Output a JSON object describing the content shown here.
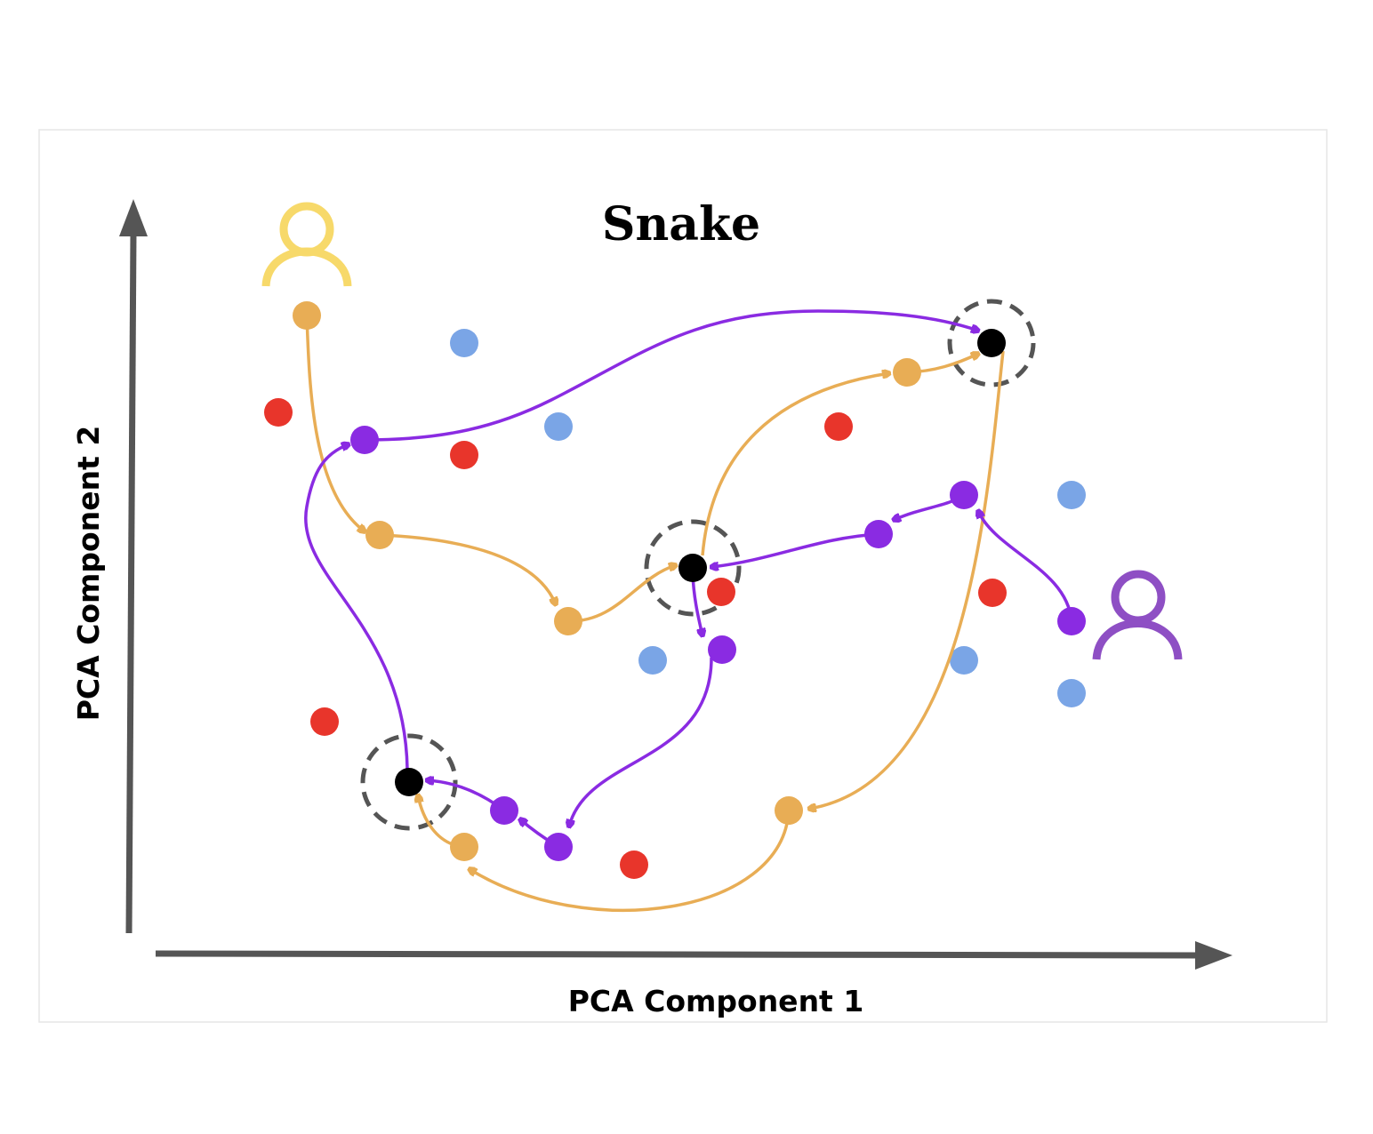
{
  "diagram": {
    "title": "Snake",
    "x_axis_label": "PCA Component 1",
    "y_axis_label": "PCA Component 2",
    "colors": {
      "panel_border": "#e6e6e6",
      "axis": "#555555",
      "yellow_user": "#f7d96a",
      "purple_user": "#8e4fc4",
      "yellow_path": "#e8ad55",
      "purple_path": "#8a2be2",
      "red_point": "#e8352b",
      "blue_point": "#7aa5e6",
      "key_point": "#000000",
      "key_ring": "#555555"
    },
    "icons": {
      "yellow_user": "user-icon",
      "purple_user": "user-icon"
    }
  }
}
